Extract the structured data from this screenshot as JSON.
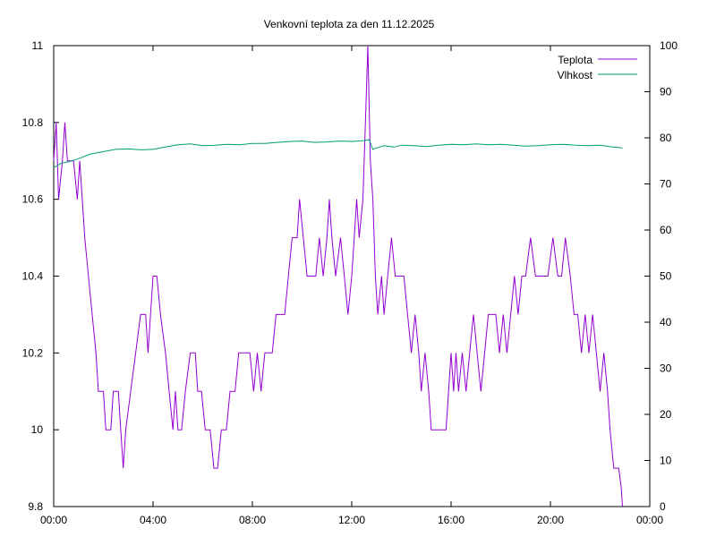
{
  "chart_data": {
    "type": "line",
    "title": "Venkovní teplota za den 11.12.2025",
    "xlabel": "",
    "ylabel": "",
    "y2label": "",
    "grid": false,
    "legend_position": "top-right",
    "x_ticks": [
      "00:00",
      "04:00",
      "08:00",
      "12:00",
      "16:00",
      "20:00",
      "00:00"
    ],
    "x_range_hours": [
      0,
      24
    ],
    "y_left": {
      "min": 9.8,
      "max": 11,
      "ticks": [
        "9.8",
        "10",
        "10.2",
        "10.4",
        "10.6",
        "10.8",
        "11"
      ]
    },
    "y_right": {
      "min": 0,
      "max": 100,
      "ticks": [
        "0",
        "10",
        "20",
        "30",
        "40",
        "50",
        "60",
        "70",
        "80",
        "90",
        "100"
      ]
    },
    "series": [
      {
        "name": "Teplota",
        "axis": "left",
        "color": "#9400d3",
        "points": [
          [
            0.0,
            10.7
          ],
          [
            0.1,
            10.8
          ],
          [
            0.2,
            10.6
          ],
          [
            0.35,
            10.7
          ],
          [
            0.45,
            10.8
          ],
          [
            0.55,
            10.7
          ],
          [
            0.8,
            10.7
          ],
          [
            0.95,
            10.6
          ],
          [
            1.05,
            10.7
          ],
          [
            1.15,
            10.6
          ],
          [
            1.25,
            10.5
          ],
          [
            1.4,
            10.4
          ],
          [
            1.55,
            10.3
          ],
          [
            1.7,
            10.2
          ],
          [
            1.8,
            10.1
          ],
          [
            2.0,
            10.1
          ],
          [
            2.1,
            10.0
          ],
          [
            2.3,
            10.0
          ],
          [
            2.4,
            10.1
          ],
          [
            2.6,
            10.1
          ],
          [
            2.7,
            10.0
          ],
          [
            2.8,
            9.9
          ],
          [
            2.9,
            10.0
          ],
          [
            3.1,
            10.1
          ],
          [
            3.3,
            10.2
          ],
          [
            3.5,
            10.3
          ],
          [
            3.7,
            10.3
          ],
          [
            3.8,
            10.2
          ],
          [
            3.9,
            10.3
          ],
          [
            4.0,
            10.4
          ],
          [
            4.15,
            10.4
          ],
          [
            4.3,
            10.3
          ],
          [
            4.5,
            10.2
          ],
          [
            4.65,
            10.1
          ],
          [
            4.8,
            10.0
          ],
          [
            4.9,
            10.1
          ],
          [
            5.0,
            10.0
          ],
          [
            5.15,
            10.0
          ],
          [
            5.3,
            10.1
          ],
          [
            5.5,
            10.2
          ],
          [
            5.7,
            10.2
          ],
          [
            5.8,
            10.1
          ],
          [
            5.95,
            10.1
          ],
          [
            6.1,
            10.0
          ],
          [
            6.3,
            10.0
          ],
          [
            6.45,
            9.9
          ],
          [
            6.6,
            9.9
          ],
          [
            6.75,
            10.0
          ],
          [
            6.95,
            10.0
          ],
          [
            7.1,
            10.1
          ],
          [
            7.3,
            10.1
          ],
          [
            7.45,
            10.2
          ],
          [
            7.9,
            10.2
          ],
          [
            8.05,
            10.1
          ],
          [
            8.2,
            10.2
          ],
          [
            8.35,
            10.1
          ],
          [
            8.5,
            10.2
          ],
          [
            8.8,
            10.2
          ],
          [
            8.95,
            10.3
          ],
          [
            9.3,
            10.3
          ],
          [
            9.45,
            10.4
          ],
          [
            9.6,
            10.5
          ],
          [
            9.8,
            10.5
          ],
          [
            9.9,
            10.6
          ],
          [
            10.05,
            10.5
          ],
          [
            10.2,
            10.4
          ],
          [
            10.55,
            10.4
          ],
          [
            10.7,
            10.5
          ],
          [
            10.85,
            10.4
          ],
          [
            11.0,
            10.5
          ],
          [
            11.1,
            10.6
          ],
          [
            11.2,
            10.5
          ],
          [
            11.35,
            10.4
          ],
          [
            11.55,
            10.5
          ],
          [
            11.7,
            10.4
          ],
          [
            11.85,
            10.3
          ],
          [
            12.0,
            10.4
          ],
          [
            12.1,
            10.5
          ],
          [
            12.2,
            10.6
          ],
          [
            12.3,
            10.5
          ],
          [
            12.45,
            10.6
          ],
          [
            12.55,
            10.8
          ],
          [
            12.65,
            11.0
          ],
          [
            12.75,
            10.7
          ],
          [
            12.85,
            10.6
          ],
          [
            12.95,
            10.4
          ],
          [
            13.05,
            10.3
          ],
          [
            13.2,
            10.4
          ],
          [
            13.3,
            10.3
          ],
          [
            13.45,
            10.4
          ],
          [
            13.6,
            10.5
          ],
          [
            13.75,
            10.4
          ],
          [
            13.9,
            10.4
          ],
          [
            14.1,
            10.4
          ],
          [
            14.25,
            10.3
          ],
          [
            14.4,
            10.2
          ],
          [
            14.55,
            10.3
          ],
          [
            14.7,
            10.2
          ],
          [
            14.8,
            10.1
          ],
          [
            14.95,
            10.2
          ],
          [
            15.1,
            10.1
          ],
          [
            15.2,
            10.0
          ],
          [
            15.8,
            10.0
          ],
          [
            15.9,
            10.1
          ],
          [
            16.0,
            10.2
          ],
          [
            16.1,
            10.1
          ],
          [
            16.2,
            10.2
          ],
          [
            16.3,
            10.1
          ],
          [
            16.45,
            10.2
          ],
          [
            16.6,
            10.1
          ],
          [
            16.75,
            10.2
          ],
          [
            16.9,
            10.3
          ],
          [
            17.05,
            10.2
          ],
          [
            17.2,
            10.1
          ],
          [
            17.35,
            10.2
          ],
          [
            17.5,
            10.3
          ],
          [
            17.8,
            10.3
          ],
          [
            17.95,
            10.2
          ],
          [
            18.1,
            10.3
          ],
          [
            18.25,
            10.2
          ],
          [
            18.4,
            10.3
          ],
          [
            18.55,
            10.4
          ],
          [
            18.7,
            10.3
          ],
          [
            18.85,
            10.4
          ],
          [
            19.0,
            10.4
          ],
          [
            19.2,
            10.5
          ],
          [
            19.4,
            10.4
          ],
          [
            19.9,
            10.4
          ],
          [
            20.1,
            10.5
          ],
          [
            20.3,
            10.4
          ],
          [
            20.45,
            10.4
          ],
          [
            20.6,
            10.5
          ],
          [
            20.8,
            10.4
          ],
          [
            20.95,
            10.3
          ],
          [
            21.1,
            10.3
          ],
          [
            21.25,
            10.2
          ],
          [
            21.4,
            10.3
          ],
          [
            21.55,
            10.2
          ],
          [
            21.7,
            10.3
          ],
          [
            21.85,
            10.2
          ],
          [
            22.0,
            10.1
          ],
          [
            22.15,
            10.2
          ],
          [
            22.3,
            10.1
          ],
          [
            22.4,
            10.0
          ],
          [
            22.55,
            9.9
          ],
          [
            22.75,
            9.9
          ],
          [
            22.85,
            9.85
          ],
          [
            22.9,
            9.8
          ]
        ]
      },
      {
        "name": "Vlhkost",
        "axis": "right",
        "color": "#009e73",
        "points": [
          [
            0.0,
            73.5
          ],
          [
            0.3,
            74.5
          ],
          [
            0.6,
            74.8
          ],
          [
            1.0,
            75.5
          ],
          [
            1.5,
            76.5
          ],
          [
            2.0,
            77.0
          ],
          [
            2.5,
            77.5
          ],
          [
            3.0,
            77.6
          ],
          [
            3.5,
            77.4
          ],
          [
            4.0,
            77.5
          ],
          [
            4.5,
            78.0
          ],
          [
            5.0,
            78.5
          ],
          [
            5.5,
            78.7
          ],
          [
            6.0,
            78.3
          ],
          [
            6.5,
            78.4
          ],
          [
            7.0,
            78.6
          ],
          [
            7.5,
            78.5
          ],
          [
            8.0,
            78.8
          ],
          [
            8.5,
            78.8
          ],
          [
            9.0,
            79.0
          ],
          [
            9.5,
            79.2
          ],
          [
            10.0,
            79.3
          ],
          [
            10.5,
            79.0
          ],
          [
            11.0,
            79.1
          ],
          [
            11.5,
            79.3
          ],
          [
            12.0,
            79.2
          ],
          [
            12.5,
            79.4
          ],
          [
            12.7,
            79.6
          ],
          [
            12.85,
            77.5
          ],
          [
            13.0,
            77.8
          ],
          [
            13.3,
            78.3
          ],
          [
            13.7,
            78.0
          ],
          [
            14.0,
            78.4
          ],
          [
            14.5,
            78.3
          ],
          [
            15.0,
            78.1
          ],
          [
            15.5,
            78.4
          ],
          [
            16.0,
            78.6
          ],
          [
            16.5,
            78.5
          ],
          [
            17.0,
            78.7
          ],
          [
            17.5,
            78.5
          ],
          [
            18.0,
            78.6
          ],
          [
            18.5,
            78.4
          ],
          [
            19.0,
            78.2
          ],
          [
            19.5,
            78.3
          ],
          [
            20.0,
            78.5
          ],
          [
            20.5,
            78.6
          ],
          [
            21.0,
            78.4
          ],
          [
            21.5,
            78.3
          ],
          [
            22.0,
            78.4
          ],
          [
            22.5,
            78.0
          ],
          [
            22.9,
            77.8
          ]
        ]
      }
    ]
  }
}
